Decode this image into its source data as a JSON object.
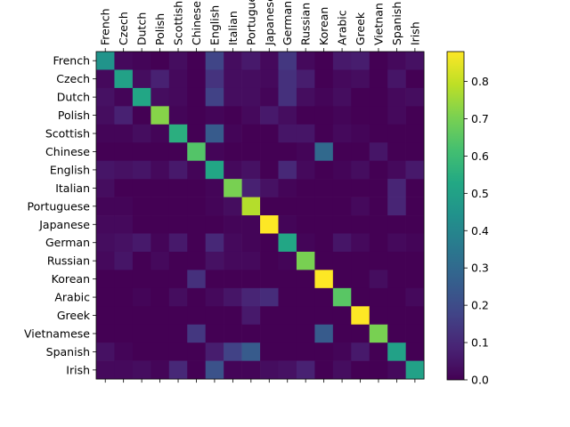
{
  "chart_data": {
    "type": "heatmap",
    "title": "",
    "xlabel": "",
    "ylabel": "",
    "x_tick_labels": [
      "French",
      "Czech",
      "Dutch",
      "Polish",
      "Scottish",
      "Chinese",
      "English",
      "Italian",
      "Portugue",
      "Japanese",
      "German",
      "Russian",
      "Korean",
      "Arabic",
      "Greek",
      "Vietnan",
      "Spanish",
      "Irish"
    ],
    "y_tick_labels": [
      "French",
      "Czech",
      "Dutch",
      "Polish",
      "Scottish",
      "Chinese",
      "English",
      "Italian",
      "Portuguese",
      "Japanese",
      "German",
      "Russian",
      "Korean",
      "Arabic",
      "Greek",
      "Vietnamese",
      "Spanish",
      "Irish"
    ],
    "x_tick_position": "top",
    "colormap": "viridis",
    "values": [
      [
        0.45,
        0.02,
        0.01,
        0.0,
        0.03,
        0.0,
        0.18,
        0.03,
        0.06,
        0.02,
        0.14,
        0.02,
        0.0,
        0.06,
        0.07,
        0.0,
        0.02,
        0.04
      ],
      [
        0.02,
        0.5,
        0.03,
        0.08,
        0.02,
        0.0,
        0.13,
        0.03,
        0.03,
        0.02,
        0.12,
        0.07,
        0.0,
        0.02,
        0.03,
        0.0,
        0.05,
        0.0
      ],
      [
        0.04,
        0.01,
        0.52,
        0.03,
        0.02,
        0.0,
        0.17,
        0.03,
        0.03,
        0.01,
        0.12,
        0.03,
        0.01,
        0.03,
        0.0,
        0.0,
        0.02,
        0.03
      ],
      [
        0.03,
        0.08,
        0.0,
        0.72,
        0.01,
        0.0,
        0.01,
        0.0,
        0.02,
        0.06,
        0.03,
        0.0,
        0.0,
        0.01,
        0.0,
        0.0,
        0.02,
        0.0
      ],
      [
        0.01,
        0.01,
        0.03,
        0.01,
        0.55,
        0.0,
        0.25,
        0.01,
        0.0,
        0.0,
        0.05,
        0.05,
        0.0,
        0.02,
        0.01,
        0.0,
        0.0,
        0.0
      ],
      [
        0.0,
        0.0,
        0.0,
        0.0,
        0.0,
        0.64,
        0.01,
        0.0,
        0.0,
        0.0,
        0.0,
        0.01,
        0.3,
        0.0,
        0.0,
        0.05,
        0.0,
        0.0
      ],
      [
        0.05,
        0.04,
        0.05,
        0.02,
        0.06,
        0.01,
        0.52,
        0.02,
        0.04,
        0.0,
        0.1,
        0.02,
        0.0,
        0.01,
        0.03,
        0.0,
        0.02,
        0.06
      ],
      [
        0.03,
        0.0,
        0.0,
        0.0,
        0.0,
        0.0,
        0.01,
        0.7,
        0.08,
        0.04,
        0.01,
        0.0,
        0.0,
        0.0,
        0.0,
        0.0,
        0.09,
        0.0
      ],
      [
        0.01,
        0.01,
        0.0,
        0.0,
        0.0,
        0.0,
        0.01,
        0.03,
        0.78,
        0.0,
        0.0,
        0.0,
        0.0,
        0.0,
        0.02,
        0.0,
        0.09,
        0.0
      ],
      [
        0.02,
        0.02,
        0.0,
        0.0,
        0.0,
        0.0,
        0.0,
        0.01,
        0.01,
        0.88,
        0.01,
        0.0,
        0.0,
        0.0,
        0.0,
        0.0,
        0.0,
        0.0
      ],
      [
        0.03,
        0.04,
        0.06,
        0.01,
        0.06,
        0.0,
        0.1,
        0.02,
        0.01,
        0.0,
        0.52,
        0.01,
        0.0,
        0.05,
        0.02,
        0.0,
        0.02,
        0.01
      ],
      [
        0.02,
        0.05,
        0.0,
        0.02,
        0.0,
        0.0,
        0.04,
        0.02,
        0.02,
        0.0,
        0.01,
        0.7,
        0.0,
        0.0,
        0.0,
        0.0,
        0.0,
        0.0
      ],
      [
        0.0,
        0.0,
        0.0,
        0.0,
        0.0,
        0.12,
        0.0,
        0.0,
        0.0,
        0.0,
        0.0,
        0.0,
        0.88,
        0.0,
        0.0,
        0.03,
        0.0,
        0.0
      ],
      [
        0.0,
        0.0,
        0.01,
        0.0,
        0.03,
        0.0,
        0.02,
        0.05,
        0.09,
        0.11,
        0.0,
        0.0,
        0.0,
        0.65,
        0.0,
        0.0,
        0.0,
        0.02
      ],
      [
        0.0,
        0.0,
        0.0,
        0.0,
        0.0,
        0.0,
        0.0,
        0.0,
        0.06,
        0.0,
        0.0,
        0.0,
        0.0,
        0.0,
        0.88,
        0.0,
        0.0,
        0.0
      ],
      [
        0.0,
        0.0,
        0.0,
        0.0,
        0.0,
        0.14,
        0.0,
        0.0,
        0.0,
        0.0,
        0.0,
        0.0,
        0.25,
        0.0,
        0.0,
        0.7,
        0.0,
        0.0
      ],
      [
        0.04,
        0.01,
        0.0,
        0.0,
        0.0,
        0.0,
        0.07,
        0.17,
        0.25,
        0.0,
        0.0,
        0.0,
        0.0,
        0.01,
        0.06,
        0.0,
        0.5,
        0.0
      ],
      [
        0.02,
        0.02,
        0.03,
        0.01,
        0.1,
        0.0,
        0.22,
        0.01,
        0.01,
        0.03,
        0.04,
        0.08,
        0.0,
        0.03,
        0.0,
        0.0,
        0.02,
        0.5
      ]
    ],
    "colorbar": {
      "range": [
        0.0,
        0.88
      ],
      "ticks": [
        0.0,
        0.1,
        0.2,
        0.3,
        0.4,
        0.5,
        0.6,
        0.7,
        0.8
      ],
      "tick_labels": [
        "0.0",
        "0.1",
        "0.2",
        "0.3",
        "0.4",
        "0.5",
        "0.6",
        "0.7",
        "0.8"
      ]
    },
    "grid": false,
    "legend": "none"
  }
}
